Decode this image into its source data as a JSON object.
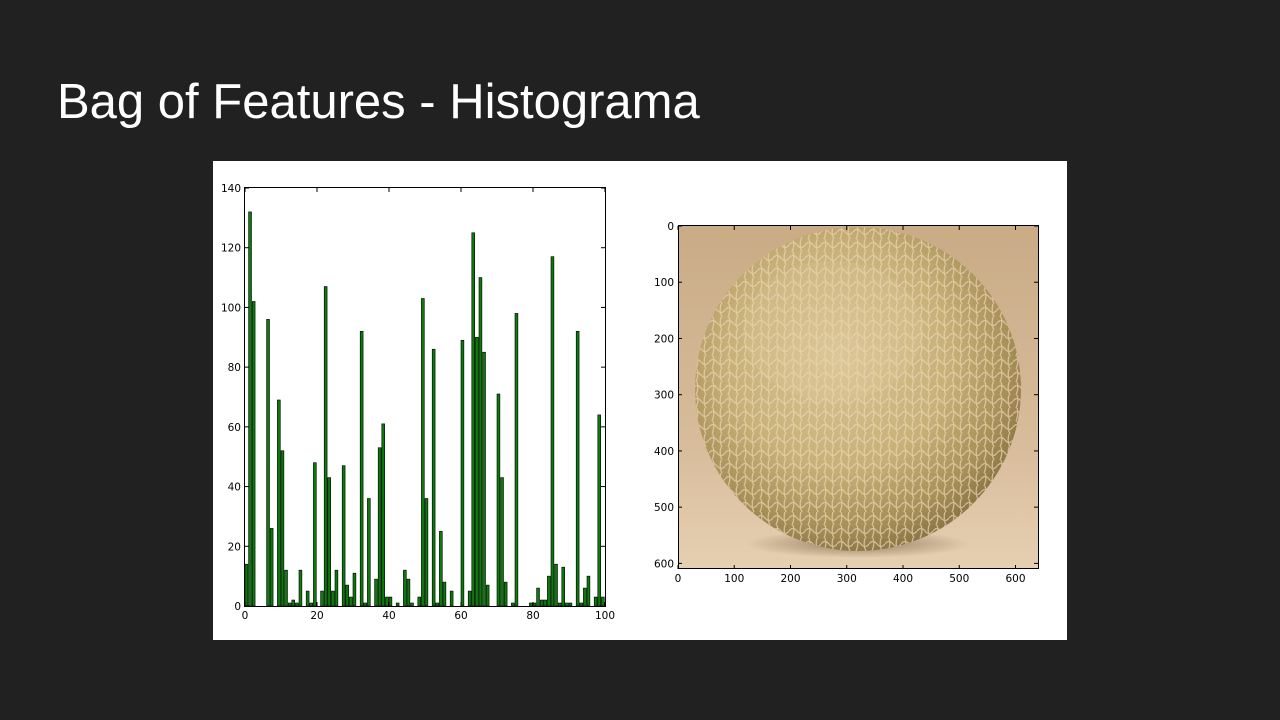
{
  "slide": {
    "title": "Bag of Features - Histograma"
  },
  "chart_data": [
    {
      "type": "bar",
      "title": "",
      "xlabel": "",
      "ylabel": "",
      "xlim": [
        0,
        100
      ],
      "ylim": [
        0,
        140
      ],
      "x_ticks": [
        "0",
        "20",
        "40",
        "60",
        "80",
        "100"
      ],
      "y_ticks": [
        "0",
        "20",
        "40",
        "60",
        "80",
        "100",
        "120",
        "140"
      ],
      "bar_color": "#0b7a0b",
      "x": [
        0,
        1,
        2,
        3,
        4,
        5,
        6,
        7,
        8,
        9,
        10,
        11,
        12,
        13,
        14,
        15,
        16,
        17,
        18,
        19,
        20,
        21,
        22,
        23,
        24,
        25,
        26,
        27,
        28,
        29,
        30,
        31,
        32,
        33,
        34,
        35,
        36,
        37,
        38,
        39,
        40,
        41,
        42,
        43,
        44,
        45,
        46,
        47,
        48,
        49,
        50,
        51,
        52,
        53,
        54,
        55,
        56,
        57,
        58,
        59,
        60,
        61,
        62,
        63,
        64,
        65,
        66,
        67,
        68,
        69,
        70,
        71,
        72,
        73,
        74,
        75,
        76,
        77,
        78,
        79,
        80,
        81,
        82,
        83,
        84,
        85,
        86,
        87,
        88,
        89,
        90,
        91,
        92,
        93,
        94,
        95,
        96,
        97,
        98,
        99
      ],
      "values": [
        14,
        132,
        102,
        0,
        0,
        0,
        96,
        26,
        0,
        69,
        52,
        12,
        1,
        2,
        1,
        12,
        0,
        5,
        1,
        48,
        0,
        5,
        107,
        43,
        5,
        12,
        0,
        47,
        7,
        3,
        11,
        0,
        92,
        1,
        36,
        0,
        9,
        53,
        61,
        3,
        3,
        0,
        1,
        0,
        12,
        9,
        1,
        0,
        3,
        103,
        36,
        0,
        86,
        1,
        25,
        8,
        0,
        5,
        0,
        0,
        89,
        0,
        5,
        125,
        90,
        110,
        85,
        7,
        0,
        0,
        71,
        43,
        8,
        0,
        1,
        98,
        0,
        0,
        0,
        1,
        1,
        6,
        2,
        2,
        10,
        117,
        14,
        1,
        13,
        1,
        1,
        0,
        92,
        1,
        6,
        10,
        0,
        3,
        64,
        3
      ]
    },
    {
      "type": "image",
      "title": "",
      "xlim": [
        0,
        640
      ],
      "ylim": [
        610,
        0
      ],
      "x_ticks": [
        "0",
        "100",
        "200",
        "300",
        "400",
        "500",
        "600"
      ],
      "y_ticks": [
        "0",
        "100",
        "200",
        "300",
        "400",
        "500",
        "600"
      ],
      "content": "cantaloupe-melon-photo"
    }
  ]
}
